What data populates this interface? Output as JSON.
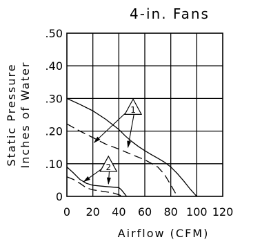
{
  "chart_data": {
    "type": "line",
    "title": "4-in. Fans",
    "xlabel": "Airflow (CFM)",
    "ylabel": "Static Pressure Inches of Water",
    "ylabel_lines": [
      "Static Pressure",
      "Inches of Water"
    ],
    "xlim": [
      0,
      120
    ],
    "ylim": [
      0,
      0.5
    ],
    "x_ticks": [
      0,
      20,
      40,
      60,
      80,
      100,
      120
    ],
    "x_tick_labels": [
      "0",
      "20",
      "40",
      "60",
      "80",
      "100",
      "120"
    ],
    "y_ticks": [
      0,
      0.1,
      0.2,
      0.3,
      0.4,
      0.5
    ],
    "y_tick_labels": [
      "0",
      ".10",
      ".20",
      ".30",
      ".40",
      ".50"
    ],
    "grid": true,
    "series": [
      {
        "style": "solid",
        "x": [
          0,
          10,
          20,
          30,
          40,
          45,
          50,
          55,
          60,
          65,
          70,
          75,
          80,
          85,
          90,
          95,
          100
        ],
        "y": [
          0.3,
          0.282,
          0.262,
          0.236,
          0.205,
          0.185,
          0.168,
          0.153,
          0.14,
          0.128,
          0.117,
          0.105,
          0.09,
          0.07,
          0.047,
          0.022,
          0.0
        ]
      },
      {
        "style": "dashed",
        "x": [
          0,
          10,
          20,
          30,
          40,
          50,
          60,
          70,
          75,
          80,
          85
        ],
        "y": [
          0.222,
          0.2,
          0.18,
          0.16,
          0.145,
          0.128,
          0.112,
          0.09,
          0.068,
          0.035,
          0.0
        ]
      },
      {
        "style": "solid",
        "x": [
          0,
          5,
          10,
          15,
          20,
          30,
          40,
          42,
          44,
          46
        ],
        "y": [
          0.09,
          0.072,
          0.052,
          0.04,
          0.034,
          0.03,
          0.027,
          0.02,
          0.01,
          0.0
        ]
      },
      {
        "style": "dashed",
        "x": [
          0,
          5,
          10,
          15,
          20,
          30,
          36,
          40,
          43
        ],
        "y": [
          0.06,
          0.052,
          0.04,
          0.026,
          0.02,
          0.014,
          0.01,
          0.005,
          0.0
        ]
      }
    ],
    "annotations": [
      {
        "label": "1",
        "anchor": [
          51,
          0.27
        ],
        "targets": [
          [
            21,
            0.165
          ],
          [
            47,
            0.15
          ]
        ]
      },
      {
        "label": "2",
        "anchor": [
          32,
          0.095
        ],
        "targets": [
          [
            13,
            0.045
          ],
          [
            32,
            0.038
          ]
        ]
      }
    ]
  }
}
